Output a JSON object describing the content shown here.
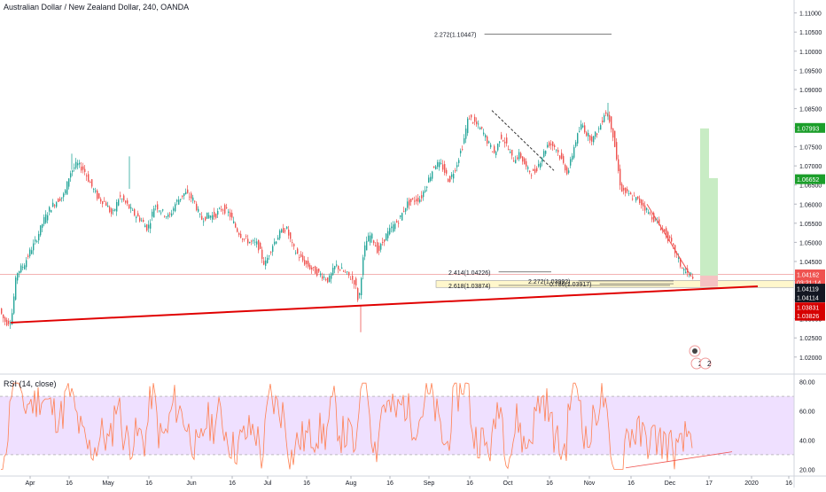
{
  "header": {
    "title": "Australian Dollar / New Zealand Dollar, 240, OANDA"
  },
  "rsi_pane": {
    "title": "RSI (14, close)"
  },
  "colors": {
    "up": "#26a69a",
    "down": "#ef5350",
    "trendline": "#e00000",
    "rsi": "#ff7f50",
    "rsi_band": "#efe0ff",
    "green_bar": "#c8ecc4"
  },
  "chart_data": [
    {
      "type": "candlestick",
      "title": "Australian Dollar / New Zealand Dollar, 240, OANDA",
      "ylim": [
        1.016,
        1.112
      ],
      "y_ticks": [
        "1.11000",
        "1.10500",
        "1.10000",
        "1.09500",
        "1.09000",
        "1.08500",
        "1.08000",
        "1.07500",
        "1.07000",
        "1.06500",
        "1.06000",
        "1.05500",
        "1.05000",
        "1.04500",
        "1.04000",
        "1.03500",
        "1.03000",
        "1.02500",
        "1.02000"
      ],
      "x_tick_labels": [
        "Apr",
        "16",
        "May",
        "16",
        "Jun",
        "16",
        "Jul",
        "16",
        "Aug",
        "16",
        "Sep",
        "16",
        "Oct",
        "16",
        "Nov",
        "16",
        "Dec",
        "17",
        "2020",
        "16"
      ],
      "grid": false,
      "price_anchors": [
        [
          0,
          1.0335
        ],
        [
          4,
          1.0305
        ],
        [
          8,
          1.029
        ],
        [
          14,
          1.0295
        ],
        [
          20,
          1.042
        ],
        [
          28,
          1.044
        ],
        [
          36,
          1.048
        ],
        [
          42,
          1.0505
        ],
        [
          50,
          1.0555
        ],
        [
          58,
          1.059
        ],
        [
          66,
          1.061
        ],
        [
          74,
          1.0625
        ],
        [
          80,
          1.068
        ],
        [
          88,
          1.0705
        ],
        [
          96,
          1.069
        ],
        [
          104,
          1.065
        ],
        [
          112,
          1.0615
        ],
        [
          120,
          1.0605
        ],
        [
          128,
          1.057
        ],
        [
          136,
          1.062
        ],
        [
          144,
          1.06
        ],
        [
          152,
          1.0575
        ],
        [
          160,
          1.056
        ],
        [
          168,
          1.0535
        ],
        [
          176,
          1.06
        ],
        [
          184,
          1.058
        ],
        [
          192,
          1.0565
        ],
        [
          200,
          1.0605
        ],
        [
          210,
          1.063
        ],
        [
          220,
          1.061
        ],
        [
          228,
          1.056
        ],
        [
          236,
          1.057
        ],
        [
          244,
          1.057
        ],
        [
          252,
          1.059
        ],
        [
          260,
          1.0575
        ],
        [
          268,
          1.0535
        ],
        [
          276,
          1.051
        ],
        [
          284,
          1.05
        ],
        [
          292,
          1.0495
        ],
        [
          300,
          1.044
        ],
        [
          308,
          1.049
        ],
        [
          316,
          1.052
        ],
        [
          324,
          1.054
        ],
        [
          332,
          1.0485
        ],
        [
          340,
          1.046
        ],
        [
          348,
          1.044
        ],
        [
          356,
          1.0425
        ],
        [
          364,
          1.0415
        ],
        [
          372,
          1.04
        ],
        [
          380,
          1.044
        ],
        [
          388,
          1.0425
        ],
        [
          396,
          1.041
        ],
        [
          402,
          1.0395
        ],
        [
          406,
          1.034
        ],
        [
          410,
          1.044
        ],
        [
          414,
          1.05
        ],
        [
          420,
          1.052
        ],
        [
          428,
          1.0475
        ],
        [
          436,
          1.0515
        ],
        [
          444,
          1.054
        ],
        [
          452,
          1.056
        ],
        [
          460,
          1.06
        ],
        [
          468,
          1.061
        ],
        [
          476,
          1.0615
        ],
        [
          484,
          1.066
        ],
        [
          492,
          1.0705
        ],
        [
          500,
          1.07
        ],
        [
          508,
          1.066
        ],
        [
          516,
          1.07
        ],
        [
          524,
          1.076
        ],
        [
          530,
          1.083
        ],
        [
          538,
          1.081
        ],
        [
          546,
          1.079
        ],
        [
          552,
          1.076
        ],
        [
          560,
          1.073
        ],
        [
          566,
          1.078
        ],
        [
          572,
          1.076
        ],
        [
          580,
          1.0715
        ],
        [
          588,
          1.073
        ],
        [
          596,
          1.069
        ],
        [
          604,
          1.068
        ],
        [
          612,
          1.072
        ],
        [
          620,
          1.076
        ],
        [
          628,
          1.075
        ],
        [
          636,
          1.071
        ],
        [
          642,
          1.068
        ],
        [
          650,
          1.076
        ],
        [
          658,
          1.081
        ],
        [
          664,
          1.078
        ],
        [
          670,
          1.077
        ],
        [
          678,
          1.08
        ],
        [
          684,
          1.0845
        ],
        [
          690,
          1.0815
        ],
        [
          694,
          1.077
        ],
        [
          698,
          1.07
        ],
        [
          702,
          1.064
        ],
        [
          710,
          1.0625
        ],
        [
          718,
          1.0615
        ],
        [
          726,
          1.06
        ],
        [
          734,
          1.0575
        ],
        [
          742,
          1.0555
        ],
        [
          750,
          1.053
        ],
        [
          758,
          1.05
        ],
        [
          764,
          1.047
        ],
        [
          770,
          1.0435
        ],
        [
          776,
          1.042
        ],
        [
          782,
          1.0413
        ]
      ],
      "candles_per_step": 2,
      "trendlines": [
        {
          "from": [
            12,
            1.029
          ],
          "to": [
            855,
            1.0385
          ],
          "color": "#e00000",
          "width": 2
        },
        {
          "from": [
            555,
            1.0845
          ],
          "to": [
            625,
            1.0688
          ],
          "color": "#333333",
          "dashed": true
        },
        {
          "from": [
            730,
            1.06
          ],
          "to": [
            780,
            1.041
          ],
          "color": "#ef5350",
          "width": 1
        }
      ],
      "annotations": [
        {
          "text": "2.272(1.10447)",
          "x": 490,
          "y": 1.10447,
          "line_to": 690
        },
        {
          "text": "2.414(1.04226)",
          "x": 506,
          "y": 1.04226,
          "line_to": 622
        },
        {
          "text": "2.272(1.03992)",
          "x": 596,
          "y": 1.03992,
          "line_to": 760
        },
        {
          "text": "0.786(1.03917)",
          "x": 620,
          "y": 1.03917,
          "line_to": 760
        },
        {
          "text": "2.618(1.03874)",
          "x": 506,
          "y": 1.03874,
          "line_to": 756
        }
      ],
      "fib_band": {
        "from_x": 492,
        "to_x": 932,
        "y_top": 1.04,
        "y_bottom": 1.0382
      },
      "forecast_bars": [
        {
          "x_from": 790,
          "x_to": 800,
          "y_top": 1.0798,
          "y_bottom": 1.04
        },
        {
          "x_from": 800,
          "x_to": 810,
          "y_top": 1.0668,
          "y_bottom": 1.04
        }
      ],
      "horizontal_line": {
        "y": 1.04162,
        "color": "#ef9a9a"
      },
      "price_labels": [
        {
          "text": "1.07993",
          "y": 1.07993,
          "color": "#1b9e2a"
        },
        {
          "text": "1.06652",
          "y": 1.06652,
          "color": "#1b9e2a"
        },
        {
          "text": "1.04162",
          "y": 1.04162,
          "color": "#ef5350"
        },
        {
          "text": "03:21:14",
          "y": 1.0395,
          "color": "#ef5350"
        },
        {
          "text": "1.04119",
          "y": 1.0379,
          "color": "#131722"
        },
        {
          "text": "1.04114",
          "y": 1.0356,
          "color": "#131722"
        },
        {
          "text": "1.03831",
          "y": 1.033,
          "color": "#d60000"
        },
        {
          "text": "1.03826",
          "y": 1.0308,
          "color": "#d60000"
        }
      ],
      "event_markers": [
        "2",
        "2"
      ]
    },
    {
      "type": "line",
      "title": "RSI (14, close)",
      "ylim": [
        16,
        84
      ],
      "y_ticks": [
        "80.00",
        "60.00",
        "40.00",
        "20.00"
      ],
      "band": [
        30,
        70
      ],
      "rsi_divergence_line": {
        "from": [
          706,
          21
        ],
        "to": [
          826,
          32
        ]
      },
      "rsi_x_end": 782
    }
  ]
}
